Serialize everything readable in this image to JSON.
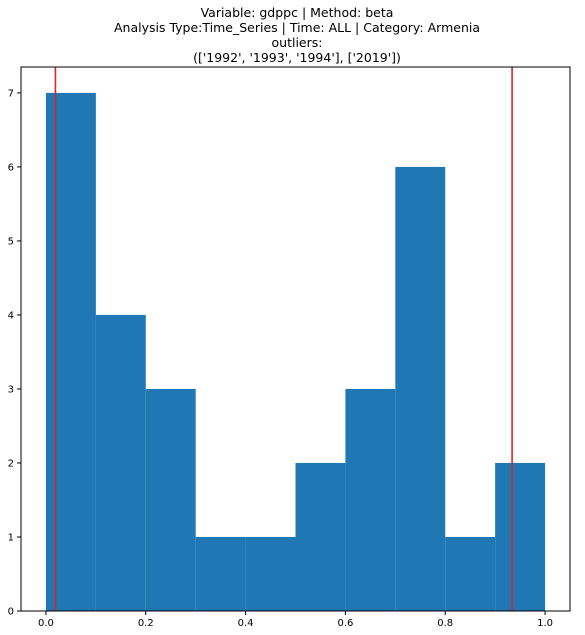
{
  "chart_data": {
    "type": "bar",
    "title_lines": [
      "Variable: gdppc | Method: beta",
      "Analysis Type:Time_Series | Time: ALL | Category: Armenia",
      "outliers:",
      "(['1992', '1993', '1994'], ['2019'])"
    ],
    "bin_edges": [
      0.0,
      0.1,
      0.2,
      0.3,
      0.4,
      0.5,
      0.6,
      0.7,
      0.8,
      0.9,
      1.0
    ],
    "values": [
      7,
      4,
      3,
      1,
      1,
      2,
      3,
      6,
      1,
      2
    ],
    "bar_color": "#1f77b4",
    "vlines": [
      0.019,
      0.934
    ],
    "vline_color": "#d62728",
    "xlim": [
      -0.05,
      1.05
    ],
    "ylim": [
      0,
      7.35
    ],
    "xticks": [
      0.0,
      0.2,
      0.4,
      0.6,
      0.8,
      1.0
    ],
    "xtick_labels": [
      "0.0",
      "0.2",
      "0.4",
      "0.6",
      "0.8",
      "1.0"
    ],
    "yticks": [
      0,
      1,
      2,
      3,
      4,
      5,
      6,
      7
    ],
    "ytick_labels": [
      "0",
      "1",
      "2",
      "3",
      "4",
      "5",
      "6",
      "7"
    ],
    "xlabel": "",
    "ylabel": "",
    "grid": false
  }
}
